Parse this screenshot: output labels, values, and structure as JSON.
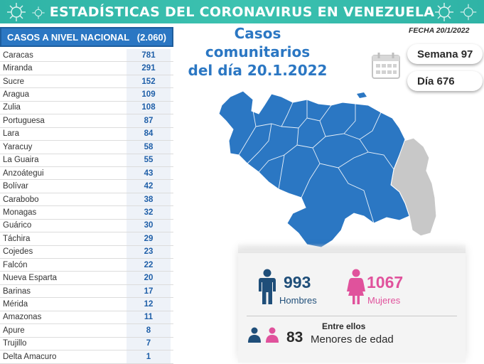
{
  "header": {
    "title": "ESTADÍSTICAS DEL CORONAVIRUS EN VENEZUELA"
  },
  "table": {
    "title": "CASOS A NIVEL NACIONAL",
    "total": "(2.060)",
    "rows": [
      {
        "state": "Caracas",
        "cases": "781"
      },
      {
        "state": "Miranda",
        "cases": "291"
      },
      {
        "state": "Sucre",
        "cases": "152"
      },
      {
        "state": "Aragua",
        "cases": "109"
      },
      {
        "state": "Zulia",
        "cases": "108"
      },
      {
        "state": "Portuguesa",
        "cases": "87"
      },
      {
        "state": "Lara",
        "cases": "84"
      },
      {
        "state": "Yaracuy",
        "cases": "58"
      },
      {
        "state": "La Guaira",
        "cases": "55"
      },
      {
        "state": "Anzoátegui",
        "cases": "43"
      },
      {
        "state": "Bolívar",
        "cases": "42"
      },
      {
        "state": "Carabobo",
        "cases": "38"
      },
      {
        "state": "Monagas",
        "cases": "32"
      },
      {
        "state": "Guárico",
        "cases": "30"
      },
      {
        "state": "Táchira",
        "cases": "29"
      },
      {
        "state": "Cojedes",
        "cases": "23"
      },
      {
        "state": "Falcón",
        "cases": "22"
      },
      {
        "state": "Nueva Esparta",
        "cases": "20"
      },
      {
        "state": "Barinas",
        "cases": "17"
      },
      {
        "state": "Mérida",
        "cases": "12"
      },
      {
        "state": "Amazonas",
        "cases": "11"
      },
      {
        "state": "Apure",
        "cases": "8"
      },
      {
        "state": "Trujillo",
        "cases": "7"
      },
      {
        "state": "Delta Amacuro",
        "cases": "1"
      }
    ]
  },
  "summary": {
    "title_line1": "Casos comunitarios",
    "title_line2": "del día 20.1.2022",
    "fecha": "FECHA 20/1/2022",
    "semana": "Semana 97",
    "dia": "Día 676"
  },
  "stats": {
    "men_count": "993",
    "men_label": "Hombres",
    "women_count": "1067",
    "women_label": "Mujeres",
    "among_label": "Entre ellos",
    "minors_count": "83",
    "minors_label": "Menores de edad"
  },
  "colors": {
    "banner": "#2fb3a6",
    "table_header": "#2b77c3",
    "map_blue": "#2b77c3",
    "map_gray": "#c8c8c8",
    "men": "#1f4e79",
    "women": "#e0529c"
  },
  "icons": [
    "virus-icon",
    "calendar-icon",
    "man-icon",
    "woman-icon",
    "children-icon"
  ]
}
